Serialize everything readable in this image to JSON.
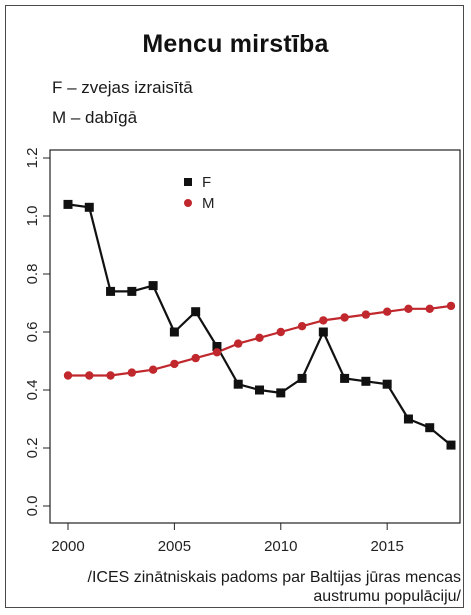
{
  "header": {
    "title": "Mencu mirstība",
    "line1": "F – zvejas izraisītā",
    "line2": "M – dabīgā"
  },
  "source": {
    "line1": "/ICES zinātniskais padoms par Baltijas jūras mencas",
    "line2": "austrumu populāciju/"
  },
  "chart_data": {
    "type": "line",
    "xlim": [
      2000,
      2018
    ],
    "ylim": [
      0,
      1.2
    ],
    "x_ticks": [
      2000,
      2005,
      2010,
      2015
    ],
    "y_ticks": [
      "0.0",
      "0.2",
      "0.4",
      "0.6",
      "0.8",
      "1.0",
      "1.2"
    ],
    "legend_position": "top-left",
    "x": [
      2000,
      2001,
      2002,
      2003,
      2004,
      2005,
      2006,
      2007,
      2008,
      2009,
      2010,
      2011,
      2012,
      2013,
      2014,
      2015,
      2016,
      2017,
      2018
    ],
    "series": [
      {
        "name": "F",
        "color": "#111111",
        "marker": "square",
        "values": [
          1.04,
          1.03,
          0.74,
          0.74,
          0.76,
          0.6,
          0.67,
          0.55,
          0.42,
          0.4,
          0.39,
          0.44,
          0.6,
          0.44,
          0.43,
          0.42,
          0.3,
          0.27,
          0.21
        ]
      },
      {
        "name": "M",
        "color": "#c0282d",
        "marker": "circle",
        "values": [
          0.45,
          0.45,
          0.45,
          0.46,
          0.47,
          0.49,
          0.51,
          0.53,
          0.56,
          0.58,
          0.6,
          0.62,
          0.64,
          0.65,
          0.66,
          0.67,
          0.68,
          0.68,
          0.69
        ]
      }
    ]
  }
}
